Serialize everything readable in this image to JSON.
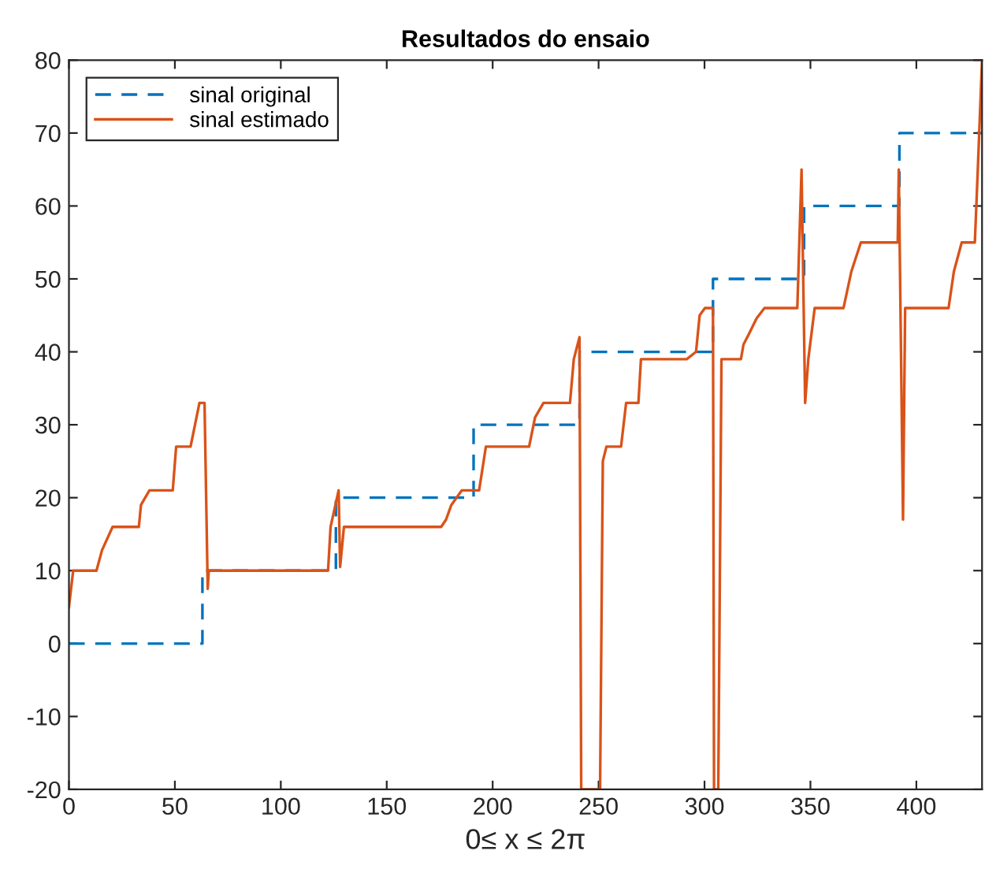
{
  "chart_data": {
    "type": "line",
    "title": "Resultados do ensaio",
    "xlabel": "0≤ x ≤ 2π",
    "xlim": [
      0,
      431
    ],
    "ylim": [
      -20,
      80
    ],
    "xticks": [
      0,
      50,
      100,
      150,
      200,
      250,
      300,
      350,
      400
    ],
    "yticks": [
      -20,
      -10,
      0,
      10,
      20,
      30,
      40,
      50,
      60,
      70,
      80
    ],
    "grid": false,
    "legend": "top left",
    "marker": "none",
    "series": [
      {
        "name": "sinal original",
        "color": "#0072bd",
        "line_style": "dashed",
        "x": [
          0,
          63,
          63,
          126,
          126,
          191,
          191,
          241,
          241,
          304,
          304,
          347,
          347,
          392,
          392,
          431
        ],
        "values": [
          0,
          0,
          10,
          10,
          20,
          20,
          30,
          30,
          40,
          40,
          50,
          50,
          60,
          60,
          70,
          70
        ]
      },
      {
        "name": "sinal estimado",
        "color": "#d95319",
        "line_style": "solid",
        "x": [
          0,
          2,
          13,
          15.6,
          20.6,
          33,
          34,
          38,
          49,
          50.6,
          57.4,
          61.6,
          64,
          65.5,
          66,
          122.3,
          123.5,
          127.3,
          128,
          129.8,
          175.7,
          178,
          180.5,
          185.4,
          193.6,
          196.8,
          217.2,
          220,
          224,
          236.5,
          238.3,
          241,
          241.8,
          250.7,
          252,
          253.7,
          260.6,
          263,
          268.8,
          270,
          291.6,
          296,
          297.7,
          300.2,
          304,
          304.5,
          306.5,
          308,
          317.2,
          318.4,
          320.9,
          324.6,
          328.3,
          343.8,
          345.8,
          347.5,
          349,
          352,
          365.6,
          369.3,
          373.8,
          391.2,
          391.7,
          393.7,
          394.7,
          415.2,
          417.7,
          421.4,
          427.6,
          429,
          431
        ],
        "values": [
          5,
          10,
          10,
          12.8,
          16,
          16,
          19,
          21,
          21,
          27,
          27,
          33,
          33,
          7.5,
          10,
          10,
          16,
          21,
          10.5,
          16,
          16,
          17,
          19,
          21,
          21,
          27,
          27,
          31,
          33,
          33,
          39,
          42,
          -20,
          -20,
          25,
          27,
          27,
          33,
          33,
          39,
          39,
          40,
          45,
          46,
          46,
          -20,
          -20,
          39,
          39,
          41,
          42.4,
          44.6,
          46,
          46,
          65,
          33,
          39,
          46,
          46,
          51,
          55,
          55,
          65,
          17,
          46,
          46,
          51,
          55,
          55,
          65,
          80
        ]
      }
    ]
  }
}
